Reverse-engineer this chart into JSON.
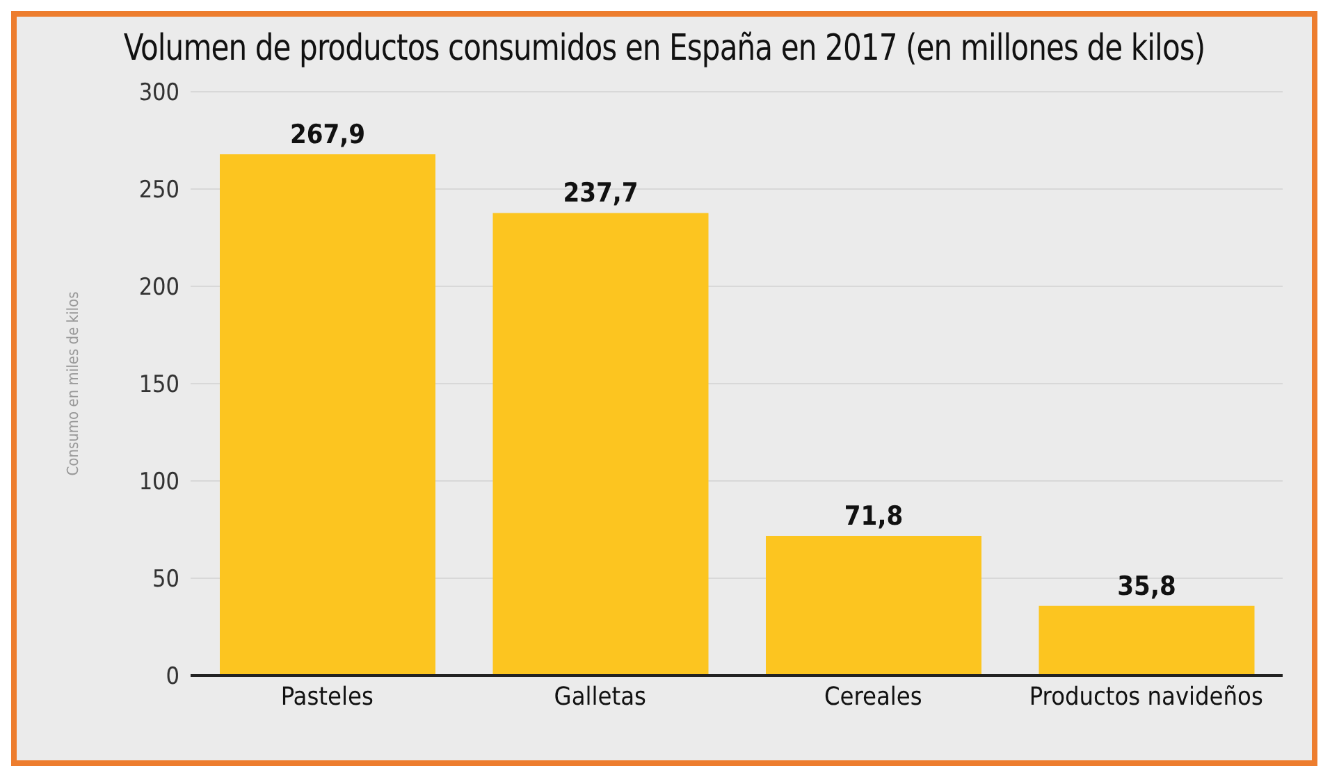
{
  "chart_data": {
    "type": "bar",
    "title": "Volumen de productos consumidos en España en 2017 (en millones de kilos)",
    "ylabel": "Consumo en miles de kilos",
    "categories": [
      "Pasteles",
      "Galletas",
      "Cereales",
      "Productos navideños"
    ],
    "values": [
      267.9,
      237.7,
      71.8,
      35.8
    ],
    "value_labels": [
      "267,9",
      "237,7",
      "71,8",
      "35,8"
    ],
    "color": "#fcc520",
    "ylim": [
      0,
      300
    ],
    "yticks": [
      0,
      50,
      100,
      150,
      200,
      250,
      300
    ],
    "grid": "y"
  }
}
